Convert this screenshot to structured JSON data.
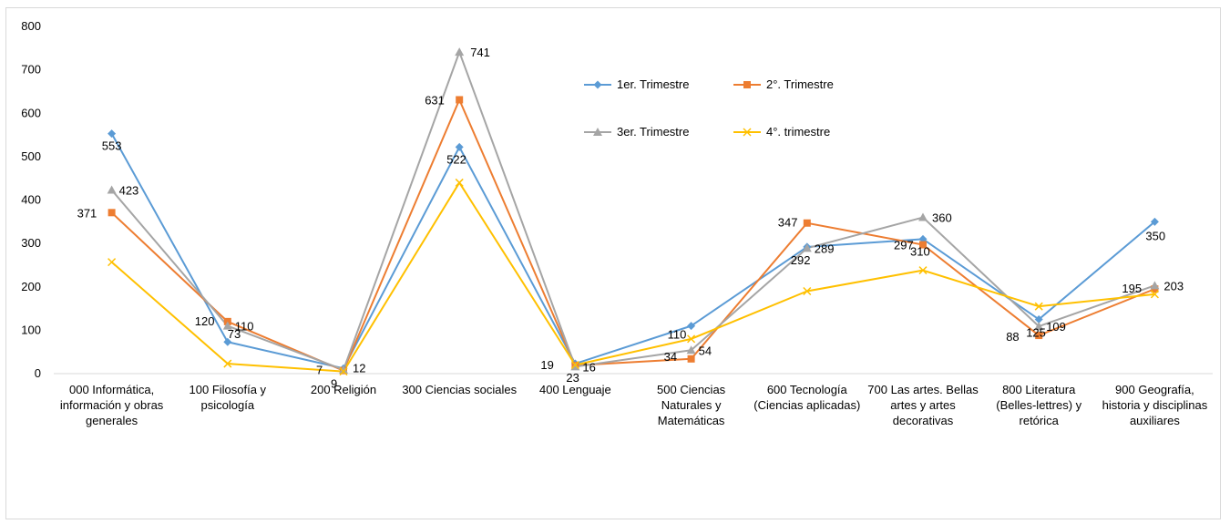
{
  "chart_data": {
    "type": "line",
    "title": "",
    "xlabel": "",
    "ylabel": "",
    "ylim": [
      0,
      800
    ],
    "yticks": [
      0,
      100,
      200,
      300,
      400,
      500,
      600,
      700,
      800
    ],
    "grid": false,
    "legend_position": "top-right",
    "categories": [
      "000 Informática, información y obras generales",
      "100 Filosofía y psicología",
      "200 Religión",
      "300 Ciencias sociales",
      "400 Lenguaje",
      "500 Ciencias Naturales y Matemáticas",
      "600 Tecnología (Ciencias aplicadas)",
      "700 Las artes. Bellas artes y artes decorativas",
      "800 Literatura (Belles-lettres) y retórica",
      "900 Geografía, historia y disciplinas auxiliares"
    ],
    "category_lines": [
      [
        "000 Informática,",
        "información y obras",
        "generales"
      ],
      [
        "100 Filosofía y",
        "psicología"
      ],
      [
        "200 Religión"
      ],
      [
        "300 Ciencias sociales"
      ],
      [
        "400 Lenguaje"
      ],
      [
        "500 Ciencias",
        "Naturales y",
        "Matemáticas"
      ],
      [
        "600 Tecnología",
        "(Ciencias aplicadas)"
      ],
      [
        "700 Las artes. Bellas",
        "artes y artes",
        "decorativas"
      ],
      [
        "800 Literatura",
        "(Belles-lettres) y",
        "retórica"
      ],
      [
        "900 Geografía,",
        "historia y disciplinas",
        "auxiliares"
      ]
    ],
    "series": [
      {
        "name": "1er. Trimestre",
        "color": "#5B9BD5",
        "marker": "diamond",
        "values": [
          553,
          73,
          12,
          522,
          23,
          110,
          292,
          310,
          125,
          350
        ],
        "labels": [
          "553",
          "73",
          "12",
          "522",
          "23",
          "110",
          "292",
          "310",
          "125",
          "350"
        ]
      },
      {
        "name": "2°. Trimestre",
        "color": "#ED7D31",
        "marker": "square",
        "values": [
          371,
          120,
          7,
          631,
          19,
          34,
          347,
          297,
          88,
          195
        ],
        "labels": [
          "371",
          "120",
          "7",
          "631",
          "19",
          "34",
          "347",
          "297",
          "88",
          "195"
        ]
      },
      {
        "name": "3er. Trimestre",
        "color": "#A5A5A5",
        "marker": "triangle",
        "values": [
          423,
          110,
          9,
          741,
          16,
          54,
          289,
          360,
          109,
          203
        ],
        "labels": [
          "423",
          "110",
          "9",
          "741",
          "16",
          "54",
          "289",
          "360",
          "109",
          "203"
        ]
      },
      {
        "name": "4°. trimestre",
        "color": "#FFC000",
        "marker": "x",
        "values": [
          257,
          23,
          5,
          440,
          20,
          80,
          190,
          238,
          155,
          183
        ],
        "labels": [
          "",
          "",
          "",
          "",
          "",
          "",
          "",
          "",
          "",
          ""
        ]
      }
    ]
  }
}
